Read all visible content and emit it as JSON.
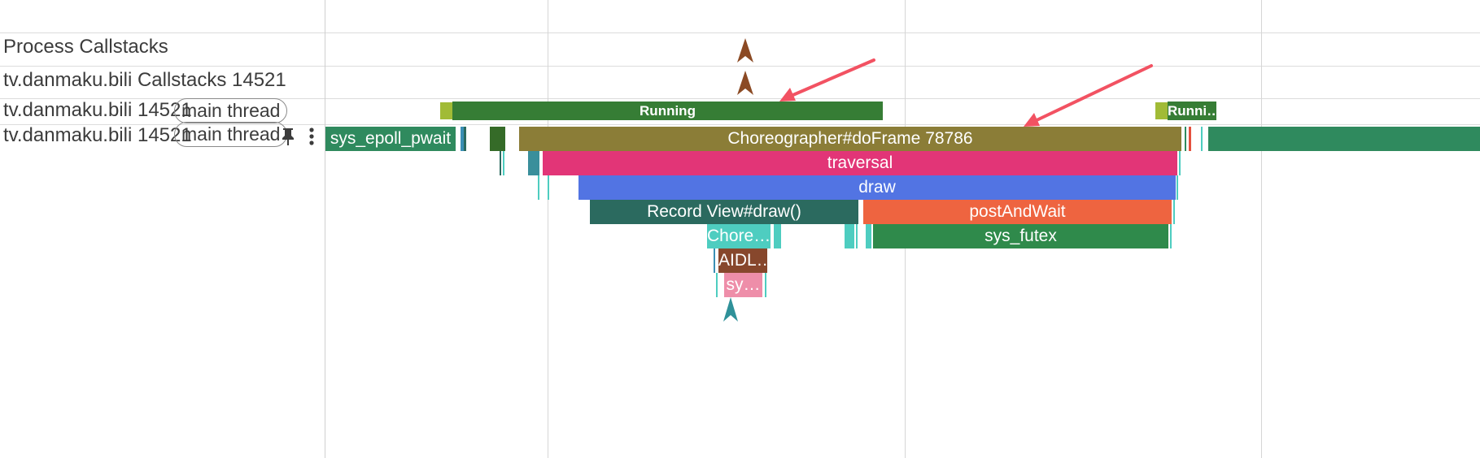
{
  "tracks": {
    "process_callstacks": "Process Callstacks",
    "thread_callstacks": "tv.danmaku.bili Callstacks 14521",
    "thread_state": "tv.danmaku.bili 14521",
    "thread_slices": "tv.danmaku.bili 14521",
    "main_thread_tag": "main thread"
  },
  "icons": {
    "pin": "pin-icon",
    "more": "more-vert-icon",
    "marker": "arrow-up-marker-icon"
  },
  "states": {
    "running_1": "Running",
    "running_2": "Runni…"
  },
  "slices": {
    "sys_epoll_pwait": "sys_epoll_pwait",
    "choreographer": "Choreographer#doFrame 78786",
    "traversal": "traversal",
    "draw": "draw",
    "record_view": "Record View#draw()",
    "post_and_wait": "postAndWait",
    "chore_short": "Chore…",
    "sys_futex": "sys_futex",
    "aidl": "AIDL…",
    "sy": "sy…"
  },
  "colors": {
    "running": "#367d35",
    "runnable": "#a1bb36",
    "choreographer": "#8b7d37",
    "traversal": "#e23577",
    "draw": "#5274e3",
    "record_view": "#2b6a5f",
    "post_and_wait": "#ee6440",
    "sys_futex": "#2f8a4b",
    "chore": "#4ecdc0",
    "aidl": "#87472c",
    "sy": "#ee8ea9",
    "sys_epoll": "#2f8a5e",
    "annotation": "#f25262"
  }
}
